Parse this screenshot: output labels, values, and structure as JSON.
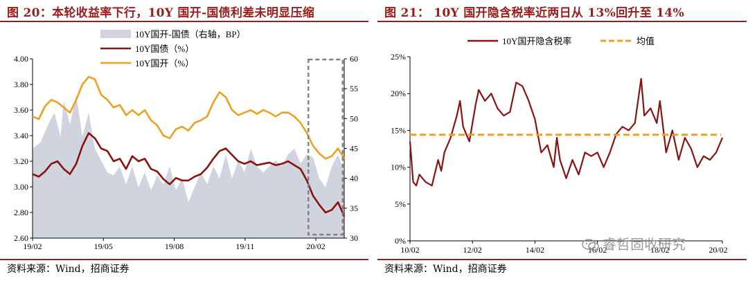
{
  "left": {
    "title": "图 20：本轮收益率下行，10Y 国开-国债利差未明显压缩",
    "source": "资料来源：Wind，招商证券",
    "chart_data": {
      "type": "line",
      "x_tick_labels": [
        "19/02",
        "19/05",
        "19/08",
        "19/11",
        "20/02"
      ],
      "y_left": {
        "range": [
          2.6,
          4.0
        ],
        "ticks": [
          "4.00",
          "3.80",
          "3.60",
          "3.40",
          "3.20",
          "3.00",
          "2.80",
          "2.60"
        ]
      },
      "y_right": {
        "range": [
          30,
          60
        ],
        "ticks": [
          "60",
          "55",
          "50",
          "45",
          "40",
          "35",
          "30"
        ]
      },
      "series": [
        {
          "name": "10Y国开-国债（右轴，BP）",
          "kind": "area",
          "axis": "right",
          "color": "#cfd4df",
          "x": [
            0,
            0.025,
            0.05,
            0.07,
            0.09,
            0.1,
            0.12,
            0.14,
            0.16,
            0.18,
            0.2,
            0.22,
            0.24,
            0.26,
            0.28,
            0.3,
            0.32,
            0.34,
            0.36,
            0.38,
            0.4,
            0.42,
            0.44,
            0.46,
            0.48,
            0.5,
            0.52,
            0.54,
            0.56,
            0.58,
            0.6,
            0.62,
            0.64,
            0.66,
            0.68,
            0.7,
            0.72,
            0.74,
            0.76,
            0.78,
            0.8,
            0.82,
            0.84,
            0.86,
            0.88,
            0.9,
            0.92,
            0.94,
            0.96,
            0.98,
            1.0
          ],
          "values": [
            45,
            46,
            49,
            51,
            47,
            53,
            49,
            54,
            47,
            51,
            45,
            43,
            41,
            40.5,
            42,
            39,
            42,
            38.5,
            41,
            38,
            40.5,
            39,
            42,
            38,
            40,
            36,
            38.5,
            41,
            39,
            42,
            40,
            44,
            40,
            43,
            41,
            45,
            42,
            41,
            42,
            43,
            42,
            44,
            45,
            42.5,
            44,
            43.5,
            40,
            38.5,
            42,
            44,
            41
          ]
        },
        {
          "name": "10Y国债（%）",
          "kind": "line",
          "axis": "left",
          "color": "#8b1111",
          "x": [
            0,
            0.02,
            0.04,
            0.06,
            0.08,
            0.1,
            0.12,
            0.14,
            0.16,
            0.18,
            0.2,
            0.22,
            0.24,
            0.26,
            0.28,
            0.3,
            0.32,
            0.34,
            0.36,
            0.38,
            0.4,
            0.42,
            0.44,
            0.46,
            0.48,
            0.5,
            0.52,
            0.54,
            0.56,
            0.58,
            0.6,
            0.62,
            0.64,
            0.66,
            0.68,
            0.7,
            0.72,
            0.74,
            0.76,
            0.78,
            0.8,
            0.82,
            0.84,
            0.86,
            0.88,
            0.9,
            0.92,
            0.94,
            0.96,
            0.98,
            1.0
          ],
          "values": [
            3.1,
            3.08,
            3.12,
            3.18,
            3.2,
            3.14,
            3.1,
            3.18,
            3.32,
            3.42,
            3.38,
            3.3,
            3.28,
            3.2,
            3.22,
            3.14,
            3.24,
            3.2,
            3.22,
            3.14,
            3.12,
            3.06,
            3.02,
            3.07,
            3.05,
            3.05,
            3.08,
            3.1,
            3.15,
            3.22,
            3.28,
            3.3,
            3.25,
            3.2,
            3.18,
            3.2,
            3.17,
            3.18,
            3.19,
            3.17,
            3.18,
            3.2,
            3.17,
            3.14,
            3.05,
            2.93,
            2.86,
            2.8,
            2.82,
            2.88,
            2.77
          ]
        },
        {
          "name": "10Y国开（%）",
          "kind": "line",
          "axis": "left",
          "color": "#f0a020",
          "x": [
            0,
            0.02,
            0.04,
            0.06,
            0.08,
            0.1,
            0.12,
            0.14,
            0.16,
            0.18,
            0.2,
            0.22,
            0.24,
            0.26,
            0.28,
            0.3,
            0.32,
            0.34,
            0.36,
            0.38,
            0.4,
            0.42,
            0.44,
            0.46,
            0.48,
            0.5,
            0.52,
            0.54,
            0.56,
            0.58,
            0.6,
            0.62,
            0.64,
            0.66,
            0.68,
            0.7,
            0.72,
            0.74,
            0.76,
            0.78,
            0.8,
            0.82,
            0.84,
            0.86,
            0.88,
            0.9,
            0.92,
            0.94,
            0.96,
            0.98,
            1.0
          ],
          "values": [
            3.55,
            3.53,
            3.63,
            3.68,
            3.66,
            3.62,
            3.58,
            3.68,
            3.8,
            3.86,
            3.84,
            3.72,
            3.68,
            3.62,
            3.64,
            3.56,
            3.6,
            3.56,
            3.6,
            3.52,
            3.48,
            3.4,
            3.38,
            3.45,
            3.47,
            3.44,
            3.5,
            3.52,
            3.55,
            3.66,
            3.74,
            3.7,
            3.6,
            3.56,
            3.58,
            3.6,
            3.57,
            3.6,
            3.58,
            3.55,
            3.58,
            3.58,
            3.55,
            3.5,
            3.42,
            3.32,
            3.26,
            3.22,
            3.24,
            3.3,
            3.22
          ]
        }
      ],
      "annotation": "dashed gray box around the most recent period (20/01–20/03)"
    }
  },
  "right": {
    "title": "图 21：   10Y 国开隐含税率近两日从 13%回升至 14%",
    "source": "资料来源：Wind，招商证券",
    "watermark": "睿哲固收研究",
    "chart_data": {
      "type": "line",
      "x_tick_labels": [
        "10/02",
        "12/02",
        "14/02",
        "16/02",
        "18/02",
        "20/02"
      ],
      "y": {
        "range": [
          0,
          25
        ],
        "ticks": [
          "25%",
          "20%",
          "15%",
          "10%",
          "5%",
          "0%"
        ]
      },
      "series": [
        {
          "name": "10Y国开隐含税率",
          "kind": "line",
          "color": "#8b1111",
          "x": [
            0,
            0.01,
            0.02,
            0.03,
            0.05,
            0.07,
            0.09,
            0.1,
            0.11,
            0.13,
            0.15,
            0.16,
            0.17,
            0.19,
            0.21,
            0.22,
            0.24,
            0.26,
            0.28,
            0.3,
            0.32,
            0.34,
            0.36,
            0.38,
            0.4,
            0.42,
            0.44,
            0.46,
            0.47,
            0.48,
            0.5,
            0.52,
            0.54,
            0.56,
            0.58,
            0.6,
            0.62,
            0.64,
            0.66,
            0.68,
            0.7,
            0.72,
            0.74,
            0.75,
            0.77,
            0.79,
            0.8,
            0.82,
            0.84,
            0.86,
            0.88,
            0.9,
            0.92,
            0.94,
            0.96,
            0.98,
            1.0
          ],
          "values": [
            13.5,
            8,
            7.5,
            9,
            8,
            7.5,
            11,
            9.5,
            12,
            14,
            17,
            19,
            15.5,
            13.5,
            18.5,
            20.5,
            19,
            20,
            18,
            17,
            17.5,
            21.5,
            21,
            19,
            16.5,
            12,
            13,
            10,
            14,
            11,
            8.5,
            11,
            9,
            12,
            11.5,
            12,
            10,
            12,
            14.5,
            15.5,
            15,
            16,
            22,
            17,
            18,
            16,
            19,
            12,
            15,
            11,
            14,
            12.5,
            10,
            11.5,
            11,
            12,
            14
          ]
        },
        {
          "name": "均值",
          "kind": "dashed",
          "color": "#f0a020",
          "value": 14.4
        }
      ]
    }
  }
}
